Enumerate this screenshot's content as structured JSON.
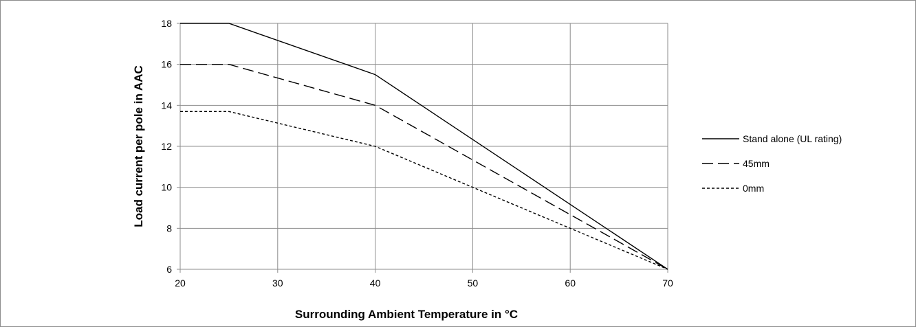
{
  "chart_data": {
    "type": "line",
    "xlabel": "Surrounding Ambient Temperature in °C",
    "ylabel": "Load current per pole in AAC",
    "xlim": [
      20,
      70
    ],
    "ylim": [
      6,
      18
    ],
    "x_ticks": [
      20,
      30,
      40,
      50,
      60,
      70
    ],
    "y_ticks": [
      6,
      8,
      10,
      12,
      14,
      16,
      18
    ],
    "grid": true,
    "legend_position": "right",
    "series": [
      {
        "name": "Stand alone (UL rating)",
        "style": "solid",
        "color": "#000000",
        "points": [
          [
            20,
            18
          ],
          [
            25,
            18
          ],
          [
            40,
            15.5
          ],
          [
            70,
            6
          ]
        ]
      },
      {
        "name": "45mm",
        "style": "long-dash",
        "color": "#000000",
        "points": [
          [
            20,
            16
          ],
          [
            25,
            16
          ],
          [
            40,
            14
          ],
          [
            70,
            6
          ]
        ]
      },
      {
        "name": "0mm",
        "style": "short-dash",
        "color": "#000000",
        "points": [
          [
            20,
            13.7
          ],
          [
            25,
            13.7
          ],
          [
            40,
            12
          ],
          [
            70,
            6
          ]
        ]
      }
    ]
  }
}
